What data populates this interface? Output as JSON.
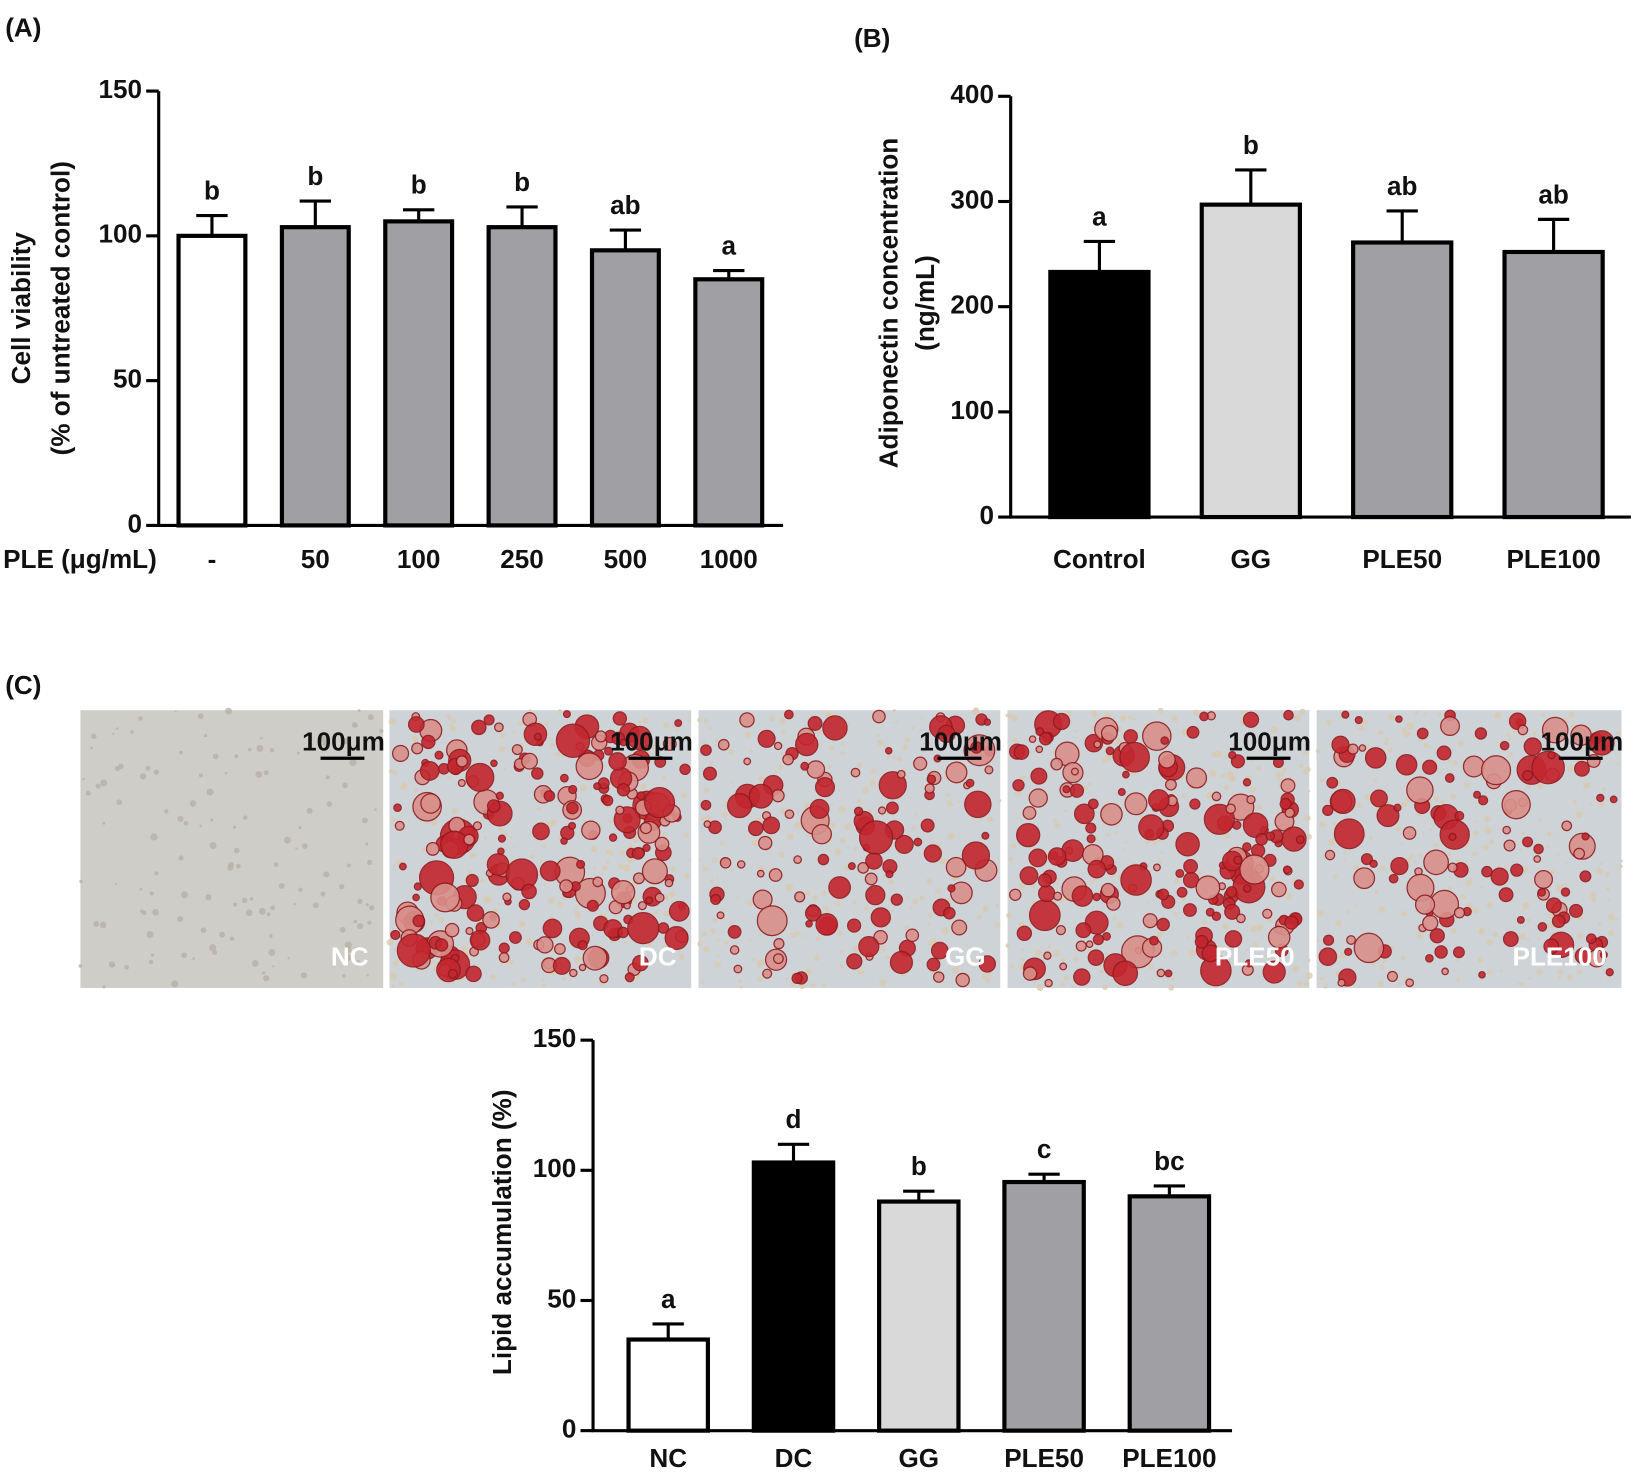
{
  "panel_labels": [
    "(A)",
    "(B)",
    "(C)"
  ],
  "micrographs": {
    "scale_bar": "100μm",
    "labels": [
      "NC",
      "DC",
      "GG",
      "PLE50",
      "PLE100"
    ]
  },
  "chart_data": [
    {
      "type": "bar",
      "ylabel": [
        "Cell viability",
        "(% of untreated control)"
      ],
      "xlabel": "PLE (μg/mL)",
      "categories": [
        "-",
        "50",
        "100",
        "250",
        "500",
        "1000"
      ],
      "values": [
        100,
        103,
        105,
        103,
        95,
        85
      ],
      "errors": [
        7,
        9,
        4,
        7,
        7,
        3
      ],
      "annotations": [
        "b",
        "b",
        "b",
        "b",
        "ab",
        "a"
      ],
      "colors": [
        "#ffffff",
        "#a0a0a4",
        "#a0a0a4",
        "#a0a0a4",
        "#a0a0a4",
        "#a0a0a4"
      ],
      "ylim": [
        0,
        150
      ],
      "yticks": [
        0,
        50,
        100,
        150
      ]
    },
    {
      "type": "bar",
      "ylabel": [
        "Adiponectin concentration",
        "(ng/mL)"
      ],
      "categories": [
        "Control",
        "GG",
        "PLE50",
        "PLE100"
      ],
      "values": [
        233,
        297,
        261,
        252
      ],
      "errors": [
        29,
        33,
        30,
        31
      ],
      "annotations": [
        "a",
        "b",
        "ab",
        "ab"
      ],
      "colors": [
        "#000000",
        "#d9d9d9",
        "#a0a0a4",
        "#a0a0a4"
      ],
      "ylim": [
        0,
        400
      ],
      "yticks": [
        0,
        100,
        200,
        300,
        400
      ]
    },
    {
      "type": "bar",
      "ylabel": [
        "Lipid accumulation (%)"
      ],
      "categories": [
        "NC",
        "DC",
        "GG",
        "PLE50",
        "PLE100"
      ],
      "values": [
        35,
        103,
        88,
        95.5,
        90
      ],
      "errors": [
        6,
        7,
        4,
        3,
        4
      ],
      "annotations": [
        "a",
        "d",
        "b",
        "c",
        "bc"
      ],
      "colors": [
        "#ffffff",
        "#000000",
        "#d9d9d9",
        "#a0a0a4",
        "#a0a0a4"
      ],
      "ylim": [
        0,
        150
      ],
      "yticks": [
        0,
        50,
        100,
        150
      ]
    }
  ]
}
